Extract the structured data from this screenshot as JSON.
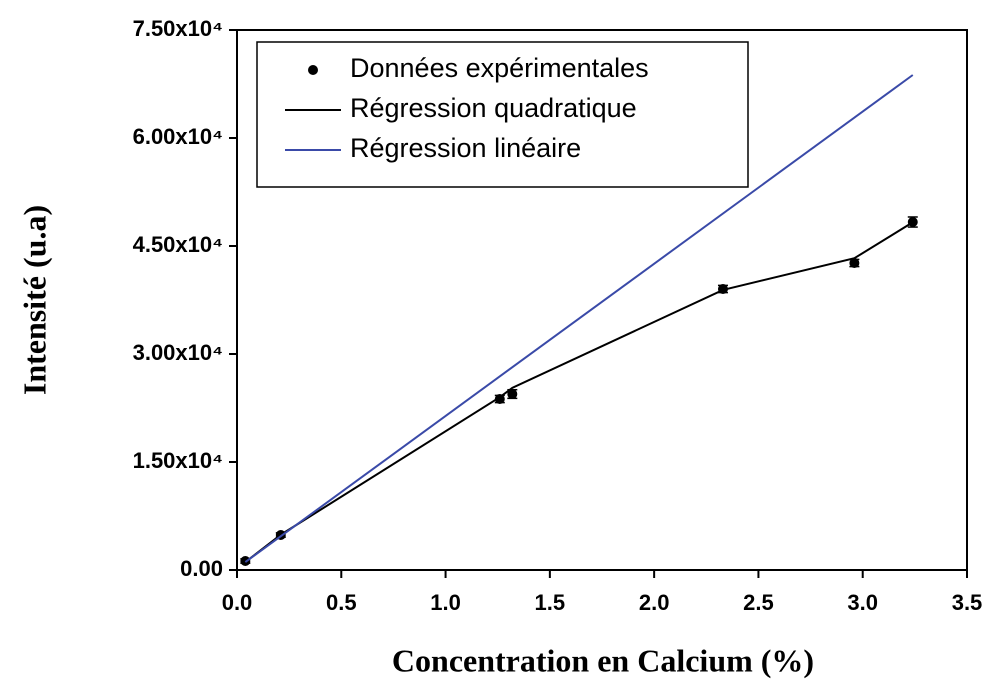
{
  "chart_data": {
    "type": "scatter",
    "xlabel": "Concentration en Calcium (%)",
    "ylabel": "Intensité (u.a)",
    "xlim": [
      0,
      3.5
    ],
    "ylim": [
      0,
      75000
    ],
    "xticks": [
      {
        "value": 0,
        "label": "0.0"
      },
      0.5,
      {
        "value": 1,
        "label": "1.0"
      },
      1.5,
      {
        "value": 2,
        "label": "2.0"
      },
      2.5,
      {
        "value": 3,
        "label": "3.0"
      },
      3.5
    ],
    "yticks": [
      {
        "value": 0,
        "label": "0.00"
      },
      {
        "value": 15000,
        "label": "1.50x10⁴"
      },
      {
        "value": 30000,
        "label": "3.00x10⁴"
      },
      {
        "value": 45000,
        "label": "4.50x10⁴"
      },
      {
        "value": 60000,
        "label": "6.00x10⁴"
      },
      {
        "value": 75000,
        "label": "7.50x10⁴"
      }
    ],
    "legend": "upper left",
    "series": [
      {
        "name": "Données expérimentales",
        "type": "scatter",
        "color": "#000000",
        "x": [
          0.04,
          0.21,
          1.26,
          1.32,
          2.33,
          2.96,
          3.24
        ],
        "values": [
          1250,
          4860,
          23750,
          24440,
          39030,
          42640,
          48330
        ],
        "errors": [
          300,
          300,
          500,
          600,
          500,
          500,
          700
        ]
      },
      {
        "name": "Régression quadratique",
        "type": "line",
        "color": "#000000",
        "x": [
          0.04,
          0.21,
          1.26,
          1.32,
          2.33,
          2.96,
          3.24
        ],
        "values": [
          1100,
          4900,
          24000,
          25300,
          38900,
          43300,
          48300
        ]
      },
      {
        "name": "Régression linéaire",
        "type": "line",
        "color": "#3a4aa8",
        "x": [
          0.04,
          3.24
        ],
        "values": [
          1100,
          68750
        ]
      }
    ]
  }
}
